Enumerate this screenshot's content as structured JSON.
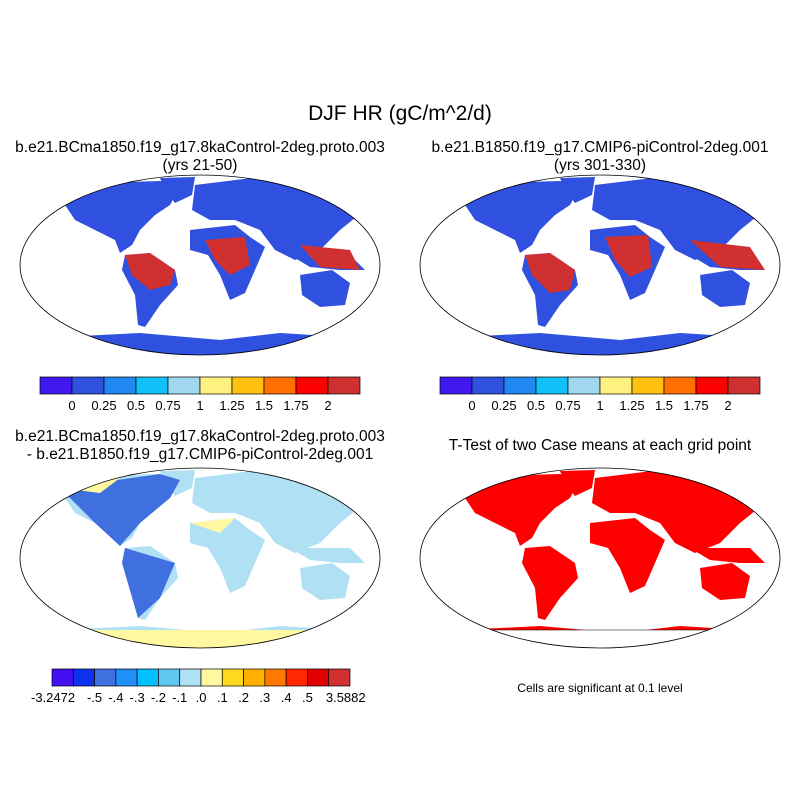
{
  "title": "DJF HR (gC/m^2/d)",
  "panels": [
    {
      "title_line1": "b.e21.BCma1850.f19_g17.8kaControl-2deg.proto.003",
      "title_line2": "(yrs 21-50)"
    },
    {
      "title_line1": "b.e21.B1850.f19_g17.CMIP6-piControl-2deg.001",
      "title_line2": "(yrs 301-330)"
    },
    {
      "title_line1": "b.e21.BCma1850.f19_g17.8kaControl-2deg.proto.003",
      "title_line2": "- b.e21.B1850.f19_g17.CMIP6-piControl-2deg.001"
    },
    {
      "title_line1": "T-Test of two Case means at each grid point",
      "note": "Cells are significant at 0.1 level"
    }
  ],
  "colorbar_main": {
    "labels": [
      "0",
      "0.25",
      "0.5",
      "0.75",
      "1",
      "1.25",
      "1.5",
      "1.75",
      "2"
    ],
    "colors": [
      "#4018f0",
      "#3050e0",
      "#2088f0",
      "#10c0f8",
      "#a0d8f0",
      "#fff080",
      "#ffc010",
      "#ff7000",
      "#ff0000",
      "#d03030"
    ]
  },
  "colorbar_diff": {
    "labels": [
      "-3.2472",
      "-.5",
      "-.4",
      "-.3",
      "-.2",
      "-.1",
      ".0",
      ".1",
      ".2",
      ".3",
      ".4",
      ".5",
      "3.5882"
    ],
    "colors": [
      "#4010f0",
      "#1030f0",
      "#4070e0",
      "#2090f8",
      "#00c0ff",
      "#60c8f0",
      "#b0e0f4",
      "#fff8a0",
      "#ffd820",
      "#ffb000",
      "#ff7800",
      "#ff2800",
      "#e00000",
      "#d03030"
    ]
  },
  "significance_color": "#ff0000"
}
